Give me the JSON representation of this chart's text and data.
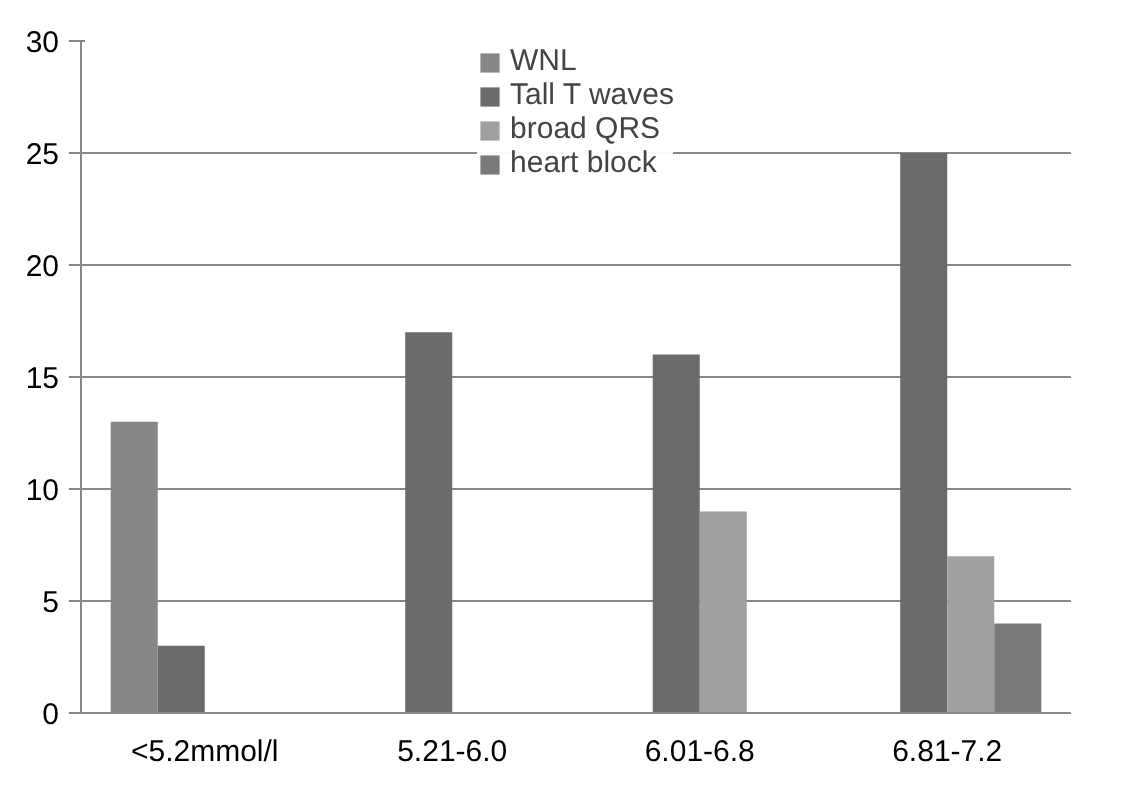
{
  "chart_data": {
    "type": "bar",
    "categories": [
      "<5.2mmol/l",
      "5.21-6.0",
      "6.01-6.8",
      "6.81-7.2"
    ],
    "series": [
      {
        "name": "WNL",
        "color": "#878787",
        "values": [
          13,
          null,
          null,
          null
        ]
      },
      {
        "name": "Tall T waves",
        "color": "#6b6b6b",
        "values": [
          3,
          17,
          16,
          25
        ]
      },
      {
        "name": "broad QRS",
        "color": "#a0a0a0",
        "values": [
          null,
          null,
          9,
          7
        ]
      },
      {
        "name": "heart block",
        "color": "#7a7a7a",
        "values": [
          null,
          null,
          null,
          4
        ]
      }
    ],
    "ylim": [
      0,
      30
    ],
    "yticks": [
      0,
      5,
      10,
      15,
      20,
      25,
      30
    ],
    "grid": "y",
    "legend": "top"
  }
}
